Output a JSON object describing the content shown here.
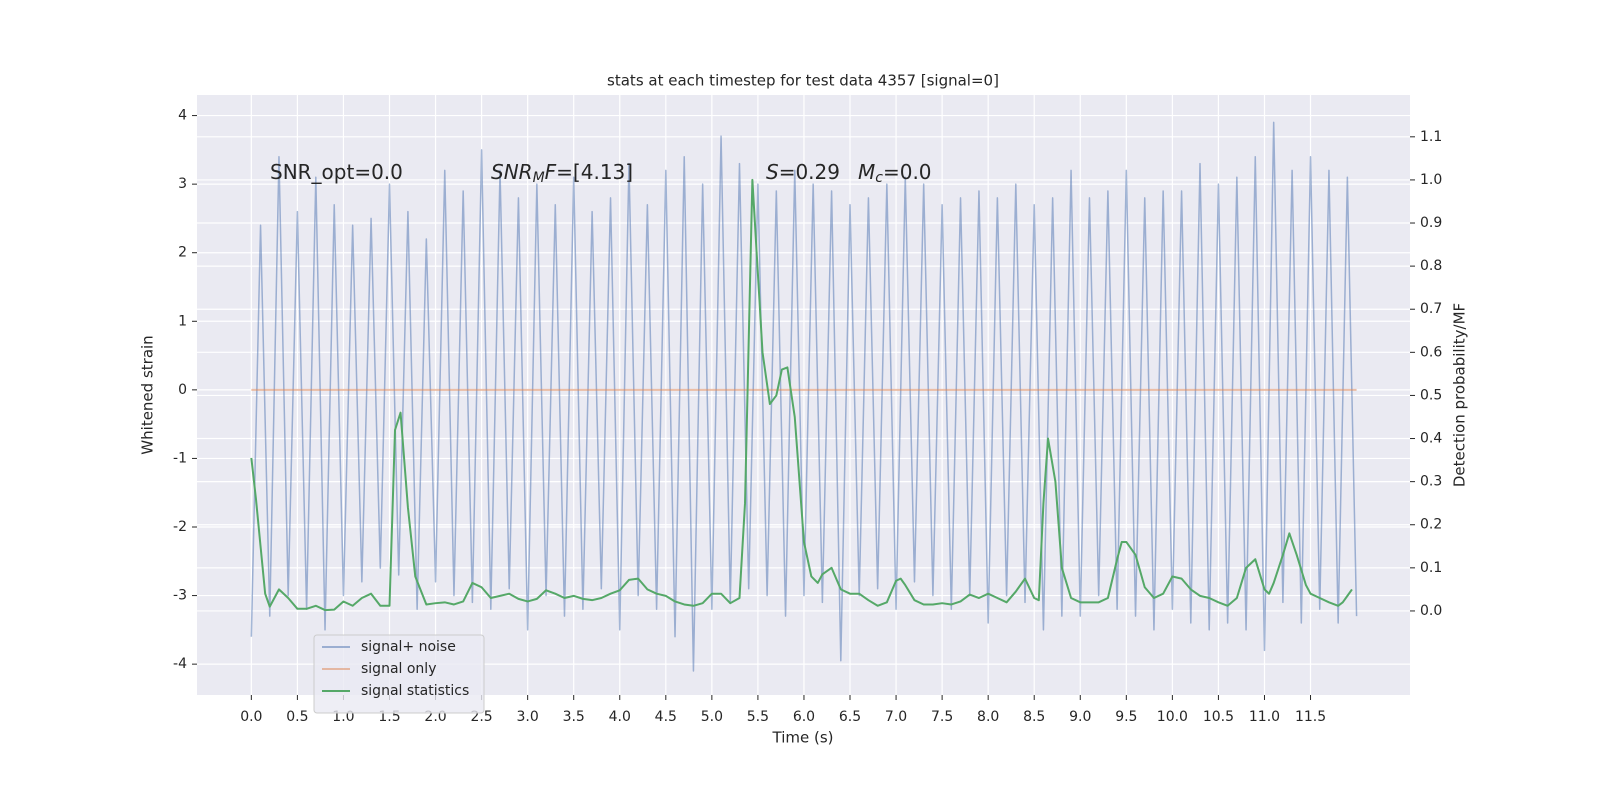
{
  "chart_data": {
    "type": "line",
    "title": "stats at each timestep for test data 4357 [signal=0]",
    "xlabel": "Time (s)",
    "ylabel": "Whitened strain",
    "y2label": "Detection probability/MF",
    "xlim": [
      -0.59,
      12.58
    ],
    "ylim": [
      -4.45,
      4.3
    ],
    "y2lim": [
      -0.195,
      1.197
    ],
    "xticks": [
      {
        "value": 0,
        "label": "0.0"
      },
      0.5,
      {
        "value": 1,
        "label": "1.0"
      },
      1.5,
      {
        "value": 2,
        "label": "2.0"
      },
      2.5,
      {
        "value": 3,
        "label": "3.0"
      },
      3.5,
      {
        "value": 4,
        "label": "4.0"
      },
      4.5,
      {
        "value": 5,
        "label": "5.0"
      },
      5.5,
      {
        "value": 6,
        "label": "6.0"
      },
      6.5,
      {
        "value": 7,
        "label": "7.0"
      },
      7.5,
      {
        "value": 8,
        "label": "8.0"
      },
      8.5,
      {
        "value": 9,
        "label": "9.0"
      },
      9.5,
      {
        "value": 10,
        "label": "10.0"
      },
      10.5,
      {
        "value": 11,
        "label": "11.0"
      },
      11.5
    ],
    "yticks": [
      -4,
      -3,
      -2,
      -1,
      0,
      1,
      2,
      3,
      4
    ],
    "y2ticks": [
      {
        "value": 0,
        "label": "0.0"
      },
      0.1,
      0.2,
      0.3,
      0.4,
      0.5,
      0.6,
      0.7,
      0.8,
      0.9,
      {
        "value": 1,
        "label": "1.0"
      },
      1.1
    ],
    "grid": true,
    "legend": "lower left",
    "annotations": [
      {
        "segments": [
          {
            "text": "SNR_opt=0.0"
          }
        ]
      },
      {
        "segments": [
          {
            "text": "SNR",
            "italic": true
          },
          {
            "text": "M",
            "italic": true,
            "sub": true
          },
          {
            "text": "F",
            "italic": true
          },
          {
            "text": "=[4.13]"
          }
        ]
      },
      {
        "segments": [
          {
            "text": "S",
            "italic": true
          },
          {
            "text": "=0.29"
          }
        ]
      },
      {
        "segments": [
          {
            "text": "M",
            "italic": true
          },
          {
            "text": "c",
            "italic": true,
            "sub": true
          },
          {
            "text": "=0.0"
          }
        ]
      }
    ],
    "series": [
      {
        "name": "signal+ noise",
        "color": "#4c72b0",
        "opacity": 0.5,
        "x": [
          0,
          0.1,
          0.2,
          0.3,
          0.4,
          0.5,
          0.6,
          0.7,
          0.8,
          0.9,
          1,
          1.1,
          1.2,
          1.3,
          1.4,
          1.5,
          1.6,
          1.7,
          1.8,
          1.9,
          2,
          2.1,
          2.2,
          2.3,
          2.4,
          2.5,
          2.6,
          2.7,
          2.8,
          2.9,
          3,
          3.1,
          3.2,
          3.3,
          3.4,
          3.5,
          3.6,
          3.7,
          3.8,
          3.9,
          4,
          4.1,
          4.2,
          4.3,
          4.4,
          4.5,
          4.6,
          4.7,
          4.8,
          4.9,
          5,
          5.1,
          5.2,
          5.3,
          5.4,
          5.5,
          5.6,
          5.7,
          5.8,
          5.9,
          6,
          6.1,
          6.2,
          6.3,
          6.4,
          6.5,
          6.6,
          6.7,
          6.8,
          6.9,
          7,
          7.1,
          7.2,
          7.3,
          7.4,
          7.5,
          7.6,
          7.7,
          7.8,
          7.9,
          8,
          8.1,
          8.2,
          8.3,
          8.4,
          8.5,
          8.6,
          8.7,
          8.8,
          8.9,
          9,
          9.1,
          9.2,
          9.3,
          9.4,
          9.5,
          9.6,
          9.7,
          9.8,
          9.9,
          10,
          10.1,
          10.2,
          10.3,
          10.4,
          10.5,
          10.6,
          10.7,
          10.8,
          10.9,
          11,
          11.1,
          11.2,
          11.3,
          11.4,
          11.5,
          11.6,
          11.7,
          11.8,
          11.9,
          12
        ],
        "values": [
          -3.6,
          2.4,
          -3.3,
          3.4,
          -3.0,
          2.6,
          -3.2,
          3.1,
          -3.5,
          2.7,
          -3.0,
          2.4,
          -2.8,
          2.5,
          -2.6,
          3.0,
          -2.7,
          2.6,
          -3.2,
          2.2,
          -2.8,
          3.2,
          -3.0,
          2.9,
          -3.1,
          3.5,
          -3.2,
          3.2,
          -2.9,
          2.8,
          -3.5,
          3.0,
          -3.0,
          2.7,
          -3.3,
          3.1,
          -3.2,
          2.6,
          -2.9,
          2.8,
          -3.5,
          3.3,
          -3.0,
          2.7,
          -3.2,
          3.2,
          -3.6,
          3.4,
          -4.1,
          3.0,
          -3.2,
          3.7,
          -3.1,
          3.3,
          -2.9,
          3.0,
          -3.0,
          2.9,
          -3.3,
          3.2,
          -3.0,
          3.0,
          -3.1,
          2.9,
          -3.95,
          2.7,
          -3.0,
          2.8,
          -2.9,
          3.0,
          -3.2,
          3.1,
          -2.8,
          3.0,
          -3.0,
          2.7,
          -3.2,
          2.8,
          -3.0,
          2.9,
          -3.4,
          2.8,
          -3.0,
          3.0,
          -3.1,
          2.7,
          -3.5,
          2.8,
          -3.3,
          3.2,
          -3.3,
          2.8,
          -3.0,
          2.9,
          -3.2,
          3.2,
          -3.3,
          2.8,
          -3.5,
          2.9,
          -3.2,
          2.9,
          -3.4,
          3.3,
          -3.5,
          3.0,
          -3.4,
          3.1,
          -3.5,
          3.4,
          -3.8,
          3.9,
          -3.1,
          3.2,
          -3.4,
          3.4,
          -3.2,
          3.2,
          -3.4,
          3.1,
          -3.3
        ]
      },
      {
        "name": "signal only",
        "color": "#dd8452",
        "opacity": 0.5,
        "x": [
          0,
          12
        ],
        "values": [
          0,
          0
        ]
      },
      {
        "name": "signal statistics",
        "color": "#55a868",
        "opacity": 1,
        "axis": "y2",
        "x": [
          0,
          0.05,
          0.1,
          0.15,
          0.2,
          0.3,
          0.4,
          0.5,
          0.6,
          0.7,
          0.8,
          0.9,
          1,
          1.1,
          1.2,
          1.3,
          1.4,
          1.5,
          1.56,
          1.62,
          1.7,
          1.78,
          1.9,
          2,
          2.1,
          2.2,
          2.3,
          2.4,
          2.5,
          2.6,
          2.7,
          2.8,
          2.9,
          3,
          3.1,
          3.2,
          3.3,
          3.4,
          3.5,
          3.6,
          3.7,
          3.8,
          3.9,
          4,
          4.1,
          4.2,
          4.3,
          4.4,
          4.5,
          4.6,
          4.7,
          4.8,
          4.9,
          5,
          5.1,
          5.2,
          5.3,
          5.36,
          5.44,
          5.55,
          5.63,
          5.7,
          5.76,
          5.82,
          5.9,
          6,
          6.08,
          6.15,
          6.2,
          6.3,
          6.4,
          6.5,
          6.6,
          6.7,
          6.8,
          6.9,
          7,
          7.05,
          7.1,
          7.2,
          7.3,
          7.4,
          7.5,
          7.6,
          7.7,
          7.8,
          7.9,
          8,
          8.1,
          8.2,
          8.3,
          8.4,
          8.5,
          8.55,
          8.6,
          8.65,
          8.73,
          8.8,
          8.9,
          9,
          9.1,
          9.2,
          9.3,
          9.4,
          9.45,
          9.5,
          9.6,
          9.7,
          9.8,
          9.9,
          10,
          10.1,
          10.2,
          10.3,
          10.4,
          10.5,
          10.6,
          10.7,
          10.8,
          10.9,
          11,
          11.05,
          11.1,
          11.2,
          11.27,
          11.35,
          11.45,
          11.5,
          11.6,
          11.7,
          11.8,
          11.85,
          11.9,
          11.95
        ],
        "values": [
          0.355,
          0.26,
          0.15,
          0.04,
          0.01,
          0.05,
          0.03,
          0.005,
          0.005,
          0.012,
          0.002,
          0.003,
          0.022,
          0.012,
          0.03,
          0.04,
          0.012,
          0.012,
          0.42,
          0.46,
          0.24,
          0.08,
          0.015,
          0.018,
          0.02,
          0.015,
          0.022,
          0.065,
          0.055,
          0.03,
          0.035,
          0.04,
          0.028,
          0.022,
          0.028,
          0.048,
          0.04,
          0.03,
          0.035,
          0.028,
          0.025,
          0.03,
          0.04,
          0.048,
          0.072,
          0.075,
          0.05,
          0.04,
          0.035,
          0.022,
          0.015,
          0.012,
          0.018,
          0.04,
          0.04,
          0.018,
          0.03,
          0.25,
          1.0,
          0.6,
          0.48,
          0.5,
          0.56,
          0.565,
          0.45,
          0.16,
          0.08,
          0.065,
          0.085,
          0.1,
          0.05,
          0.04,
          0.04,
          0.025,
          0.012,
          0.02,
          0.07,
          0.075,
          0.06,
          0.025,
          0.015,
          0.015,
          0.018,
          0.015,
          0.022,
          0.038,
          0.03,
          0.04,
          0.03,
          0.02,
          0.045,
          0.075,
          0.03,
          0.025,
          0.25,
          0.4,
          0.3,
          0.1,
          0.03,
          0.02,
          0.02,
          0.02,
          0.03,
          0.12,
          0.16,
          0.16,
          0.13,
          0.055,
          0.03,
          0.04,
          0.08,
          0.075,
          0.05,
          0.035,
          0.03,
          0.02,
          0.012,
          0.03,
          0.1,
          0.12,
          0.05,
          0.04,
          0.065,
          0.13,
          0.18,
          0.13,
          0.06,
          0.04,
          0.03,
          0.02,
          0.012,
          0.02,
          0.035,
          0.05
        ]
      }
    ]
  }
}
